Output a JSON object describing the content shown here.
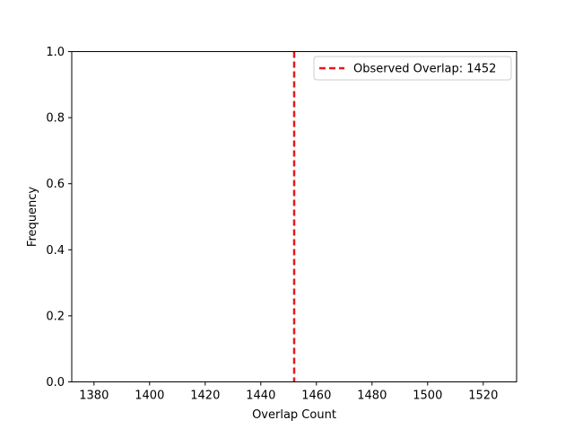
{
  "chart_data": {
    "type": "histogram",
    "title": "",
    "xlabel": "Overlap Count",
    "ylabel": "Frequency",
    "xlim": [
      1372,
      1532
    ],
    "ylim": [
      0,
      1
    ],
    "x_ticks": [
      1380,
      1400,
      1420,
      1440,
      1460,
      1480,
      1500,
      1520
    ],
    "y_ticks": [
      "0.0",
      "0.2",
      "0.4",
      "0.6",
      "0.8",
      "1.0"
    ],
    "series": [],
    "reference_lines": [
      {
        "label": "Observed Overlap: 1452",
        "x": 1452,
        "color": "#e31a1c",
        "style": "dashed"
      }
    ],
    "legend_position": "top-right",
    "grid": false
  }
}
